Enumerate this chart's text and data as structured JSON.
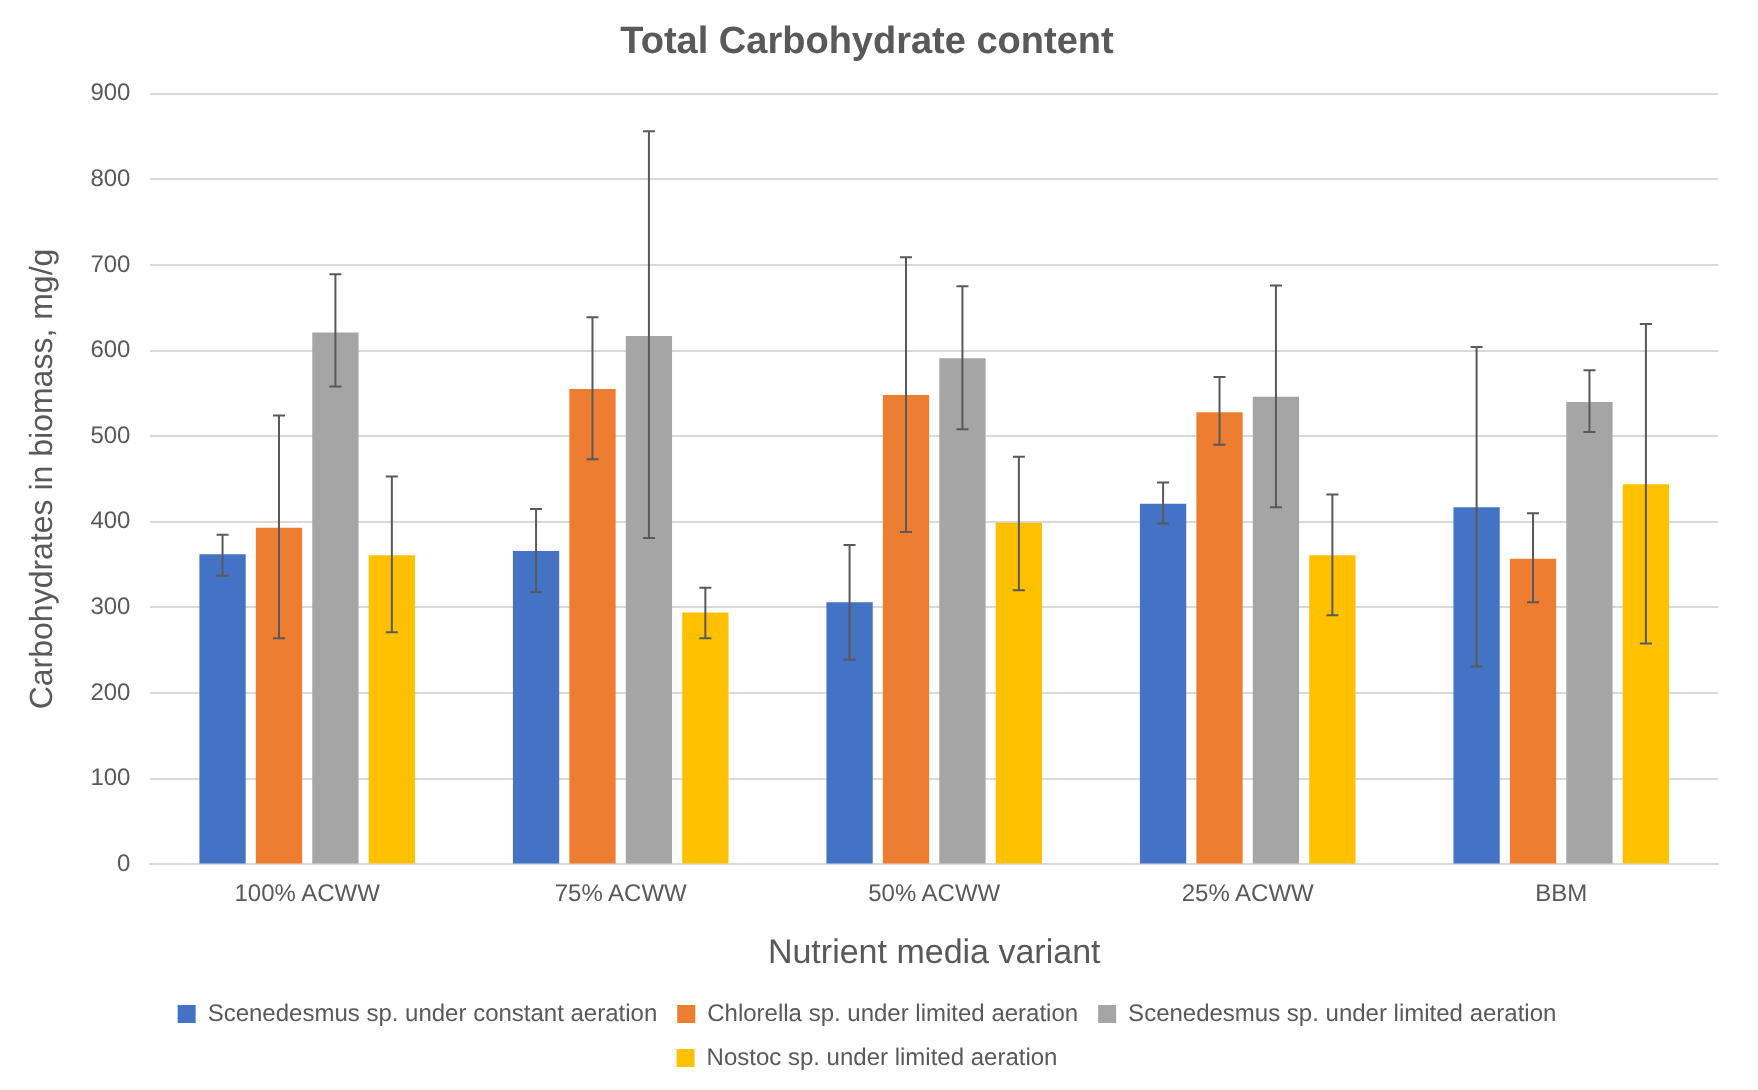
{
  "chart_data": {
    "type": "bar",
    "title": "Total Carbohydrate content",
    "xlabel": "Nutrient media variant",
    "ylabel": "Carbohydrates in biomass, mg/g",
    "categories": [
      "100% ACWW",
      "75% ACWW",
      "50% ACWW",
      "25% ACWW",
      "BBM"
    ],
    "series": [
      {
        "name": "Scenedesmus sp. under constant aeration",
        "color": "#4472c4",
        "values": [
          362,
          366,
          306,
          421,
          417
        ],
        "errors": [
          [
            337,
            385
          ],
          [
            318,
            415
          ],
          [
            239,
            373
          ],
          [
            398,
            446
          ],
          [
            231,
            604
          ]
        ]
      },
      {
        "name": "Chlorella sp. under limited aeration",
        "color": "#ed7d31",
        "values": [
          393,
          555,
          548,
          528,
          357
        ],
        "errors": [
          [
            264,
            524
          ],
          [
            473,
            639
          ],
          [
            388,
            709
          ],
          [
            490,
            569
          ],
          [
            306,
            410
          ]
        ]
      },
      {
        "name": "Scenedesmus sp. under limited aeration",
        "color": "#a5a5a5",
        "values": [
          621,
          617,
          591,
          546,
          540
        ],
        "errors": [
          [
            558,
            689
          ],
          [
            381,
            856
          ],
          [
            508,
            675
          ],
          [
            417,
            676
          ],
          [
            505,
            577
          ]
        ]
      },
      {
        "name": "Nostoc sp. under limited aeration",
        "color": "#ffc000",
        "values": [
          361,
          294,
          399,
          361,
          444
        ],
        "errors": [
          [
            271,
            453
          ],
          [
            264,
            323
          ],
          [
            320,
            476
          ],
          [
            291,
            432
          ],
          [
            258,
            631
          ]
        ]
      }
    ],
    "ylim": [
      0,
      900
    ],
    "yticks": [
      0,
      100,
      200,
      300,
      400,
      500,
      600,
      700,
      800,
      900
    ],
    "grid": "y",
    "legend": "bottom"
  }
}
